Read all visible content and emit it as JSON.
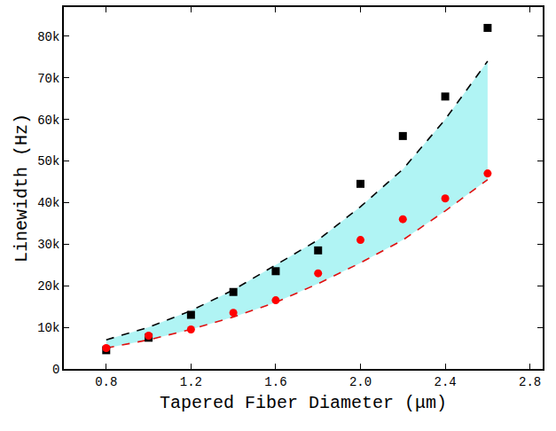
{
  "chart_data": {
    "type": "scatter",
    "x_label": "Tapered Fiber Diameter (μm)",
    "y_label": "Linewidth (Hz)",
    "x": [
      0.8,
      1.0,
      1.2,
      1.4,
      1.6,
      1.8,
      2.0,
      2.2,
      2.4,
      2.6
    ],
    "series": [
      {
        "type": "line",
        "color": "#e01010",
        "line_style": "dashed",
        "values": [
          5000,
          7000,
          9500,
          12500,
          16000,
          20500,
          25500,
          31000,
          38000,
          45500
        ]
      },
      {
        "type": "line",
        "color": "#000000",
        "line_style": "dashed",
        "values": [
          7000,
          10000,
          14000,
          19000,
          25000,
          31000,
          39000,
          48000,
          60000,
          74000
        ]
      },
      {
        "type": "scatter",
        "color": "#000000",
        "marker": "square",
        "values": [
          4500,
          7500,
          13000,
          18500,
          23500,
          28500,
          44500,
          56000,
          65500,
          82000
        ]
      },
      {
        "type": "scatter",
        "color": "#ff0000",
        "marker": "circle",
        "values": [
          5000,
          8000,
          9500,
          13500,
          16500,
          23000,
          31000,
          36000,
          41000,
          47000
        ]
      }
    ],
    "xlim": [
      0.6,
      2.86
    ],
    "xticks": [
      0.8,
      1.2,
      1.6,
      {
        "value": 2,
        "label": "2.0"
      },
      2.4,
      2.8
    ],
    "ylim": [
      0,
      87000
    ],
    "yticks": [
      0,
      {
        "value": 10000,
        "label": "10k"
      },
      {
        "value": 20000,
        "label": "20k"
      },
      {
        "value": 30000,
        "label": "30k"
      },
      {
        "value": 40000,
        "label": "40k"
      },
      {
        "value": 50000,
        "label": "50k"
      },
      {
        "value": 60000,
        "label": "60k"
      },
      {
        "value": 70000,
        "label": "70k"
      },
      {
        "value": 80000,
        "label": "80k"
      }
    ],
    "grid": false
  }
}
